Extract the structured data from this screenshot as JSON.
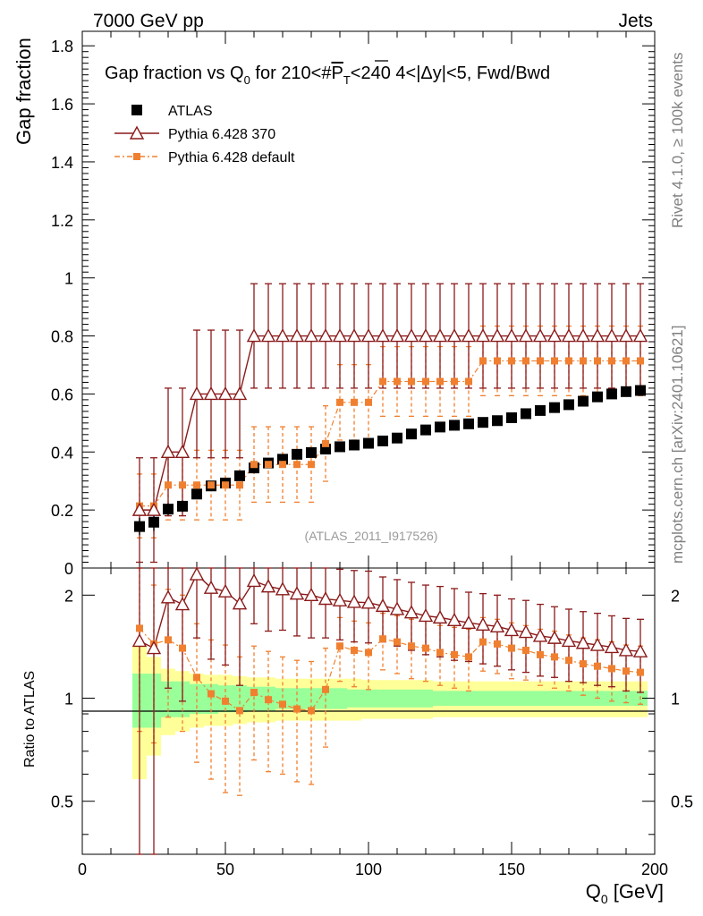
{
  "header": {
    "process": "7000 GeV pp",
    "observable": "Jets",
    "side_rivet": "Rivet 4.1.0, ≥ 100k events",
    "side_source": "mcplots.cern.ch [arXiv:2401.10621]",
    "watermark": "(ATLAS_2011_I917526)"
  },
  "chart_data": {
    "type": "scatter",
    "title_parts": {
      "lead": "Gap fraction vs Q",
      "sub0": "0",
      "mid": " for 210<#",
      "p": "P",
      "subT": "T",
      "tail": "<240  4<|Δy|<5, Fwd/Bwd"
    },
    "xlabel": "Q",
    "xlabel_sub": "0",
    "xlabel_unit": " [GeV]",
    "ylabel": "Gap fraction",
    "ratio_ylabel": "Ratio to ATLAS",
    "xlim": [
      0,
      200
    ],
    "ylim": [
      0,
      1.85
    ],
    "ratio_ylim": [
      0.35,
      2.4
    ],
    "x_ticks": [
      "0",
      "50",
      "100",
      "150",
      "200"
    ],
    "y_ticks": [
      "0",
      "0.2",
      "0.4",
      "0.6",
      "0.8",
      "1",
      "1.2",
      "1.4",
      "1.6",
      "1.8"
    ],
    "ratio_ticks": [
      "0.5",
      "1",
      "2"
    ],
    "x": [
      20,
      25,
      30,
      35,
      40,
      45,
      50,
      55,
      60,
      65,
      70,
      75,
      80,
      85,
      90,
      95,
      100,
      105,
      110,
      115,
      120,
      125,
      130,
      135,
      140,
      145,
      150,
      155,
      160,
      165,
      170,
      175,
      180,
      185,
      190,
      195
    ],
    "series": [
      {
        "name": "ATLAS",
        "style": "square",
        "color": "#000000",
        "values": [
          0.143,
          0.158,
          0.203,
          0.213,
          0.255,
          0.283,
          0.293,
          0.318,
          0.345,
          0.362,
          0.375,
          0.392,
          0.398,
          0.41,
          0.418,
          0.424,
          0.43,
          0.438,
          0.448,
          0.462,
          0.476,
          0.486,
          0.492,
          0.497,
          0.502,
          0.508,
          0.518,
          0.532,
          0.543,
          0.553,
          0.563,
          0.575,
          0.59,
          0.6,
          0.608,
          0.612
        ],
        "errors": [
          0.03,
          0.03,
          0.02,
          0.02,
          0.015,
          0.015,
          0.015,
          0.015,
          0.015,
          0.015,
          0.012,
          0.012,
          0.012,
          0.012,
          0.012,
          0.012,
          0.01,
          0.01,
          0.01,
          0.01,
          0.01,
          0.01,
          0.01,
          0.01,
          0.01,
          0.01,
          0.01,
          0.01,
          0.01,
          0.01,
          0.01,
          0.01,
          0.01,
          0.01,
          0.01,
          0.01
        ]
      },
      {
        "name": "Pythia 6.428 370",
        "style": "triangle",
        "color": "#8b1a1a",
        "values": [
          0.2,
          0.2,
          0.4,
          0.4,
          0.6,
          0.6,
          0.6,
          0.6,
          0.8,
          0.8,
          0.8,
          0.8,
          0.8,
          0.8,
          0.8,
          0.8,
          0.8,
          0.8,
          0.8,
          0.8,
          0.8,
          0.8,
          0.8,
          0.8,
          0.8,
          0.8,
          0.8,
          0.8,
          0.8,
          0.8,
          0.8,
          0.8,
          0.8,
          0.8,
          0.8,
          0.8
        ],
        "errors": [
          0.18,
          0.18,
          0.22,
          0.22,
          0.22,
          0.22,
          0.22,
          0.22,
          0.18,
          0.18,
          0.18,
          0.18,
          0.18,
          0.18,
          0.18,
          0.18,
          0.18,
          0.18,
          0.18,
          0.18,
          0.18,
          0.18,
          0.18,
          0.18,
          0.18,
          0.18,
          0.18,
          0.18,
          0.18,
          0.18,
          0.18,
          0.18,
          0.18,
          0.18,
          0.18,
          0.18
        ]
      },
      {
        "name": "Pythia 6.428 default",
        "style": "small-square-dashed",
        "color": "#f08030",
        "values": [
          0.214,
          0.214,
          0.286,
          0.286,
          0.286,
          0.286,
          0.286,
          0.286,
          0.357,
          0.357,
          0.357,
          0.357,
          0.357,
          0.429,
          0.571,
          0.571,
          0.571,
          0.643,
          0.643,
          0.643,
          0.643,
          0.643,
          0.643,
          0.643,
          0.714,
          0.714,
          0.714,
          0.714,
          0.714,
          0.714,
          0.714,
          0.714,
          0.714,
          0.714,
          0.714,
          0.714
        ],
        "errors": [
          0.11,
          0.11,
          0.12,
          0.12,
          0.12,
          0.12,
          0.12,
          0.12,
          0.13,
          0.13,
          0.13,
          0.13,
          0.13,
          0.13,
          0.13,
          0.13,
          0.13,
          0.12,
          0.12,
          0.12,
          0.12,
          0.12,
          0.12,
          0.12,
          0.12,
          0.12,
          0.12,
          0.12,
          0.12,
          0.12,
          0.12,
          0.12,
          0.12,
          0.12,
          0.12,
          0.12
        ]
      }
    ],
    "ratio": {
      "band_inner": [
        0.18,
        0.18,
        0.12,
        0.12,
        0.1,
        0.1,
        0.09,
        0.09,
        0.08,
        0.08,
        0.07,
        0.07,
        0.07,
        0.07,
        0.07,
        0.06,
        0.06,
        0.06,
        0.06,
        0.06,
        0.06,
        0.05,
        0.05,
        0.05,
        0.05,
        0.05,
        0.05,
        0.05,
        0.05,
        0.05,
        0.05,
        0.05,
        0.05,
        0.05,
        0.05,
        0.05
      ],
      "band_outer": [
        0.42,
        0.32,
        0.22,
        0.2,
        0.18,
        0.17,
        0.17,
        0.16,
        0.15,
        0.15,
        0.14,
        0.14,
        0.14,
        0.14,
        0.14,
        0.14,
        0.13,
        0.13,
        0.13,
        0.13,
        0.13,
        0.12,
        0.12,
        0.12,
        0.12,
        0.12,
        0.12,
        0.12,
        0.12,
        0.12,
        0.12,
        0.12,
        0.12,
        0.12,
        0.12,
        0.12
      ],
      "series": [
        {
          "name": "Pythia 6.428 370",
          "values": [
            1.47,
            1.4,
            1.97,
            1.88,
            2.3,
            2.1,
            2.05,
            1.89,
            2.2,
            2.12,
            2.08,
            2.02,
            2.0,
            1.95,
            1.93,
            1.91,
            1.9,
            1.86,
            1.82,
            1.78,
            1.74,
            1.72,
            1.69,
            1.66,
            1.64,
            1.62,
            1.58,
            1.56,
            1.52,
            1.5,
            1.47,
            1.45,
            1.43,
            1.41,
            1.38,
            1.37
          ],
          "errors_up": [
            1.2,
            1.2,
            0.9,
            0.9,
            0.8,
            0.8,
            0.8,
            0.8,
            0.55,
            0.55,
            0.5,
            0.5,
            0.5,
            0.45,
            0.45,
            0.45,
            0.45,
            0.4,
            0.4,
            0.4,
            0.4,
            0.4,
            0.4,
            0.38,
            0.38,
            0.38,
            0.37,
            0.37,
            0.36,
            0.35,
            0.35,
            0.34,
            0.34,
            0.33,
            0.33,
            0.33
          ],
          "errors_down": [
            1.2,
            1.2,
            0.9,
            0.9,
            0.8,
            0.8,
            0.8,
            0.8,
            0.55,
            0.55,
            0.5,
            0.5,
            0.5,
            0.45,
            0.45,
            0.45,
            0.45,
            0.4,
            0.4,
            0.4,
            0.4,
            0.4,
            0.4,
            0.38,
            0.38,
            0.38,
            0.37,
            0.37,
            0.36,
            0.35,
            0.35,
            0.34,
            0.34,
            0.33,
            0.33,
            0.33
          ]
        },
        {
          "name": "Pythia 6.428 default",
          "values": [
            1.6,
            1.44,
            1.48,
            1.4,
            1.15,
            1.03,
            0.98,
            0.92,
            1.04,
            0.99,
            0.96,
            0.93,
            0.92,
            1.06,
            1.42,
            1.38,
            1.36,
            1.49,
            1.46,
            1.42,
            1.4,
            1.36,
            1.34,
            1.32,
            1.46,
            1.44,
            1.4,
            1.38,
            1.34,
            1.32,
            1.29,
            1.26,
            1.24,
            1.22,
            1.2,
            1.19
          ],
          "errors_up": [
            0.8,
            0.7,
            0.6,
            0.6,
            0.5,
            0.45,
            0.45,
            0.4,
            0.38,
            0.38,
            0.36,
            0.36,
            0.36,
            0.34,
            0.3,
            0.3,
            0.3,
            0.28,
            0.28,
            0.28,
            0.28,
            0.27,
            0.27,
            0.27,
            0.26,
            0.26,
            0.26,
            0.25,
            0.25,
            0.25,
            0.24,
            0.24,
            0.24,
            0.24,
            0.23,
            0.23
          ],
          "errors_down": [
            0.8,
            0.7,
            0.6,
            0.6,
            0.5,
            0.45,
            0.45,
            0.4,
            0.38,
            0.38,
            0.36,
            0.36,
            0.36,
            0.34,
            0.3,
            0.3,
            0.3,
            0.28,
            0.28,
            0.28,
            0.28,
            0.27,
            0.27,
            0.27,
            0.26,
            0.26,
            0.26,
            0.25,
            0.25,
            0.25,
            0.24,
            0.24,
            0.24,
            0.24,
            0.23,
            0.23
          ]
        }
      ]
    }
  }
}
